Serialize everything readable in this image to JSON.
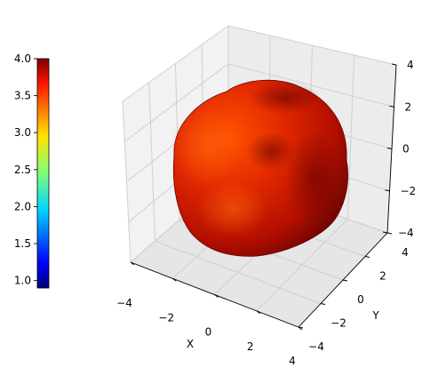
{
  "chart_data": {
    "type": "surface3d",
    "title": "",
    "colormap": "jet",
    "colorbar": {
      "min": 0.9,
      "max": 4.0,
      "ticks": [
        "1.0",
        "1.5",
        "2.0",
        "2.5",
        "3.0",
        "3.5",
        "4.0"
      ],
      "position": "left"
    },
    "axes": {
      "x": {
        "label": "X",
        "range": [
          -4,
          4
        ],
        "ticks": [
          "−4",
          "−2",
          "0",
          "2",
          "4"
        ]
      },
      "y": {
        "label": "Y",
        "range": [
          -4,
          4
        ],
        "ticks": [
          "−4",
          "−2",
          "0",
          "2",
          "4"
        ]
      },
      "z": {
        "label": "",
        "range": [
          -4,
          4
        ],
        "ticks": [
          "−4",
          "−2",
          "0",
          "2",
          "4"
        ]
      }
    },
    "surface": {
      "shape": "lumpy sphere, radius colored by colormap",
      "radius_range": [
        3.4,
        4.0
      ]
    },
    "grid": true
  }
}
